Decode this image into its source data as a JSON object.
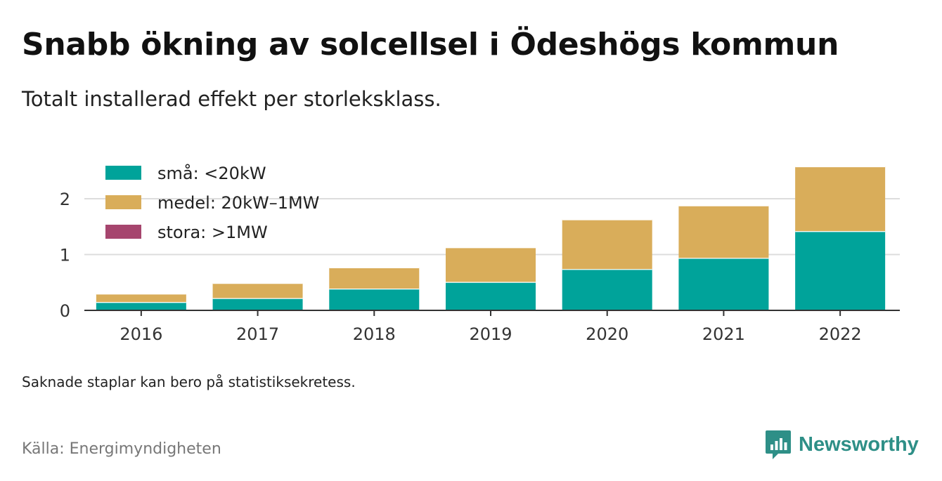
{
  "header": {
    "title": "Snabb ökning av solcellsel i Ödeshögs kommun",
    "subtitle": "Totalt installerad effekt per storleksklass."
  },
  "footer": {
    "note": "Saknade staplar kan bero på statistiksekretess.",
    "source": "Källa: Energimyndigheten",
    "brand": "Newsworthy",
    "brand_icon": "newsworthy-logo-icon",
    "brand_color": "#2e8f87"
  },
  "chart_data": {
    "type": "bar",
    "stacked": true,
    "categories": [
      "2016",
      "2017",
      "2018",
      "2019",
      "2020",
      "2021",
      "2022"
    ],
    "series": [
      {
        "name": "små: <20kW",
        "color": "#00a39a",
        "values": [
          0.15,
          0.22,
          0.39,
          0.51,
          0.74,
          0.94,
          1.42
        ]
      },
      {
        "name": "medel: 20kW–1MW",
        "color": "#d9ad5a",
        "values": [
          0.15,
          0.27,
          0.38,
          0.62,
          0.89,
          0.94,
          1.16
        ]
      },
      {
        "name": "stora: >1MW",
        "color": "#a6456e",
        "values": [
          0,
          0,
          0,
          0,
          0,
          0,
          0
        ]
      }
    ],
    "yticks": [
      0,
      1,
      2
    ],
    "ylim": [
      0,
      2.75
    ],
    "grid": true,
    "legend": "top-left"
  }
}
